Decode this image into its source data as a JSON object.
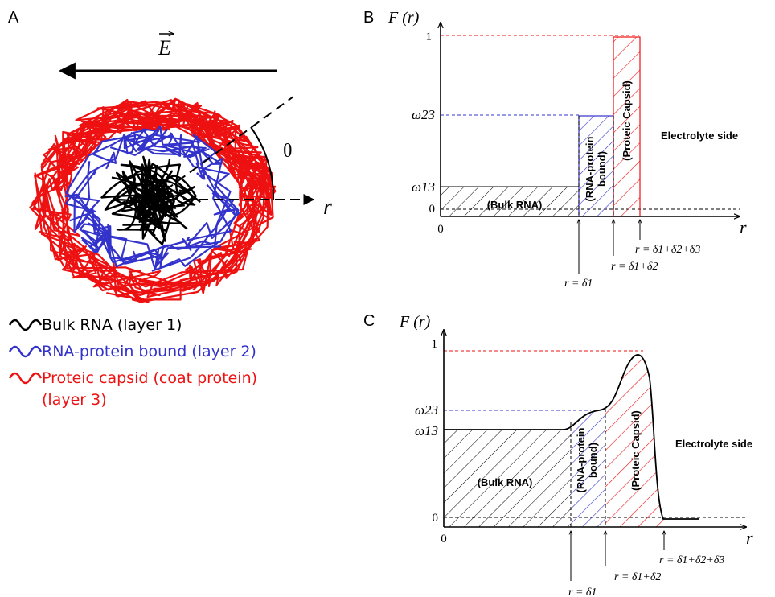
{
  "panels": {
    "a": {
      "letter": "A",
      "field_symbol": "E",
      "theta": "θ",
      "r_label": "r",
      "legend": [
        {
          "text": "Bulk RNA (layer 1)",
          "color": "#000000"
        },
        {
          "text": "RNA-protein bound (layer 2)",
          "color": "#3333cc"
        },
        {
          "text": "Proteic capsid (coat protein)",
          "color": "#ee1111"
        },
        {
          "text": "(layer 3)",
          "color": "#ee1111"
        }
      ]
    },
    "b": {
      "letter": "B",
      "y_axis_label": "F (r)",
      "x_axis_label": "r",
      "origin_label": "0",
      "y_ticks": {
        "one": "1",
        "w23": "ω23",
        "w13": "ω13",
        "zero": "0"
      },
      "regions": {
        "bulk": "(Bulk RNA)",
        "bound_line1": "(RNA-protein",
        "bound_line2": "bound)",
        "capsid": "(Proteic Capsid)"
      },
      "side_label": "Electrolyte side",
      "markers": [
        "r = δ1",
        "r = δ1+δ2",
        "r = δ1+δ2+δ3"
      ]
    },
    "c": {
      "letter": "C",
      "y_axis_label": "F (r)",
      "x_axis_label": "r",
      "origin_label": "0",
      "y_ticks": {
        "one": "1",
        "w23": "ω23",
        "w13": "ω13",
        "zero": "0"
      },
      "regions": {
        "bulk": "(Bulk RNA)",
        "bound_line1": "(RNA-protein",
        "bound_line2": "bound)",
        "capsid": "(Proteic Capsid)"
      },
      "side_label": "Electrolyte side",
      "markers": [
        "r = δ1",
        "r = δ1+δ2",
        "r = δ1+δ2+δ3"
      ]
    }
  },
  "colors": {
    "layer1": "#000000",
    "layer2": "#3333cc",
    "layer3": "#ee1111"
  }
}
